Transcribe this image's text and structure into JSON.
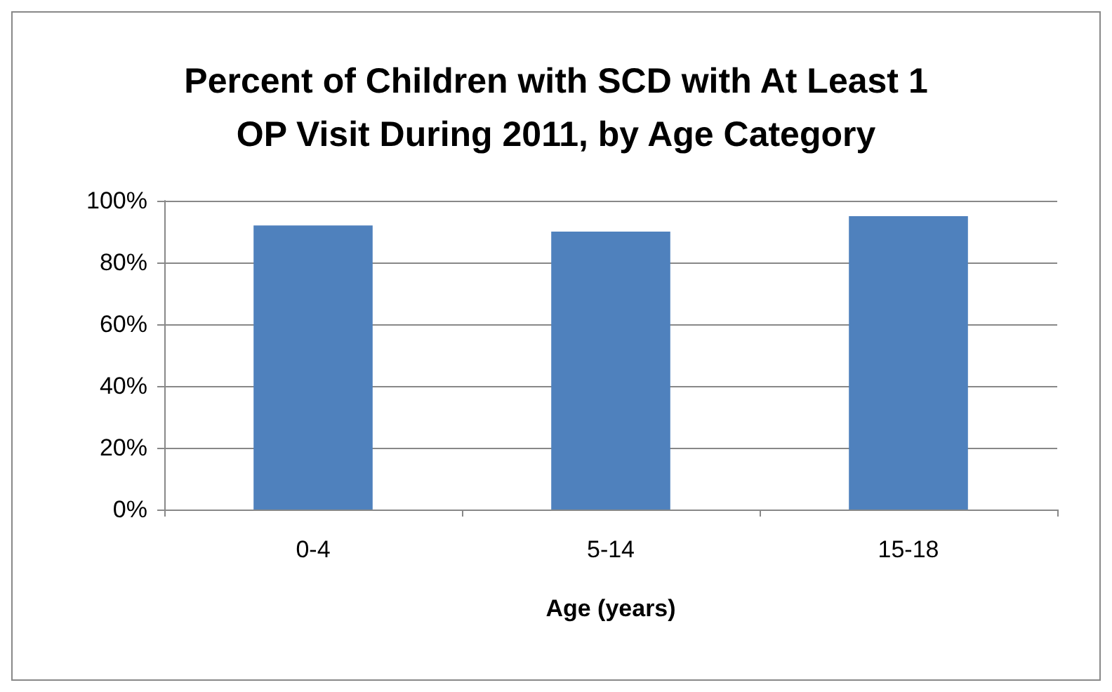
{
  "chart_data": {
    "type": "bar",
    "title": "Percent of Children with SCD with At Least 1\nOP Visit During 2011, by Age Category",
    "xlabel": "Age (years)",
    "categories": [
      "0-4",
      "5-14",
      "15-18"
    ],
    "values": [
      92,
      90,
      95
    ],
    "color": "#4f81bd",
    "ylim": [
      0,
      100
    ],
    "yticks": [
      {
        "value": 0,
        "label": "0%"
      },
      {
        "value": 20,
        "label": "20%"
      },
      {
        "value": 40,
        "label": "40%"
      },
      {
        "value": 60,
        "label": "60%"
      },
      {
        "value": 80,
        "label": "80%"
      },
      {
        "value": 100,
        "label": "100%"
      }
    ],
    "grid": "y"
  }
}
